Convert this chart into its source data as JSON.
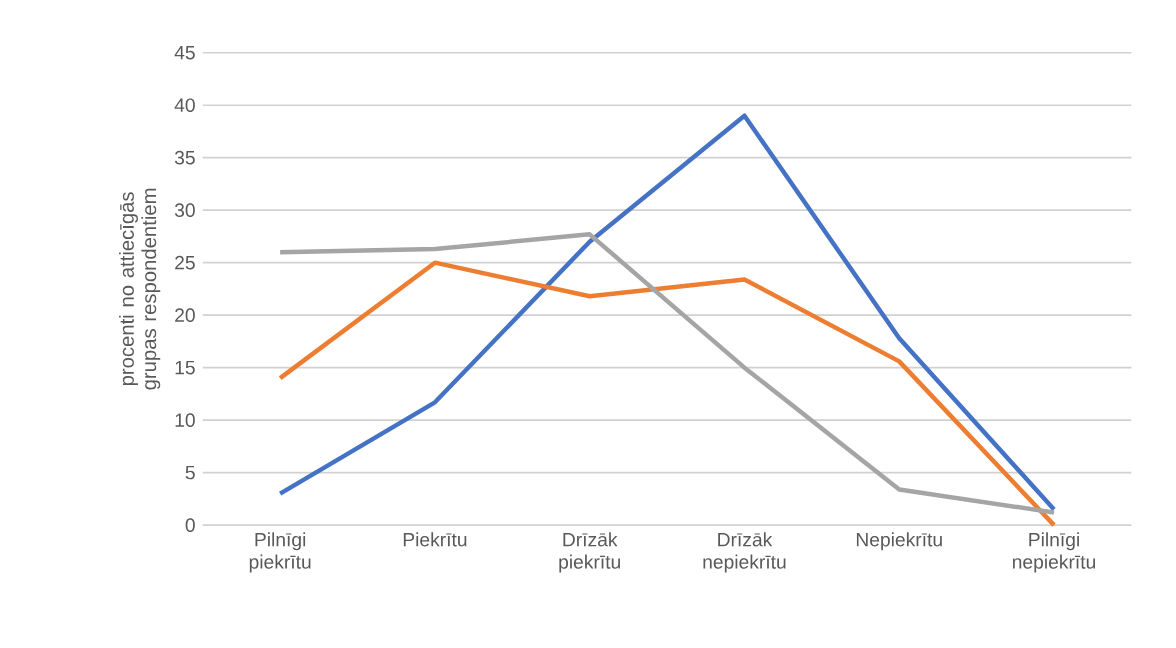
{
  "chart_data": {
    "type": "line",
    "ylabel": "procenti no attiecīgās grupas respondentiem",
    "categories": [
      "Pilnīgi piekrītu",
      "Piekrītu",
      "Drīzāk piekrītu",
      "Drīzāk nepiekrītu",
      "Nepiekrītu",
      "Pilnīgi nepiekrītu"
    ],
    "series": [
      {
        "color": "#4472c4",
        "values": [
          3,
          11.7,
          27,
          39,
          17.8,
          1.5
        ]
      },
      {
        "color": "#ed7d31",
        "values": [
          14,
          25,
          21.8,
          23.4,
          15.6,
          0
        ]
      },
      {
        "color": "#a5a5a5",
        "values": [
          26,
          26.3,
          27.7,
          15,
          3.4,
          1.2
        ]
      }
    ],
    "ylim": [
      0,
      45
    ],
    "yticks": [
      0,
      5,
      10,
      15,
      20,
      25,
      30,
      35,
      40,
      45
    ],
    "grid": "y",
    "marker": "none",
    "line_style": "solid"
  }
}
